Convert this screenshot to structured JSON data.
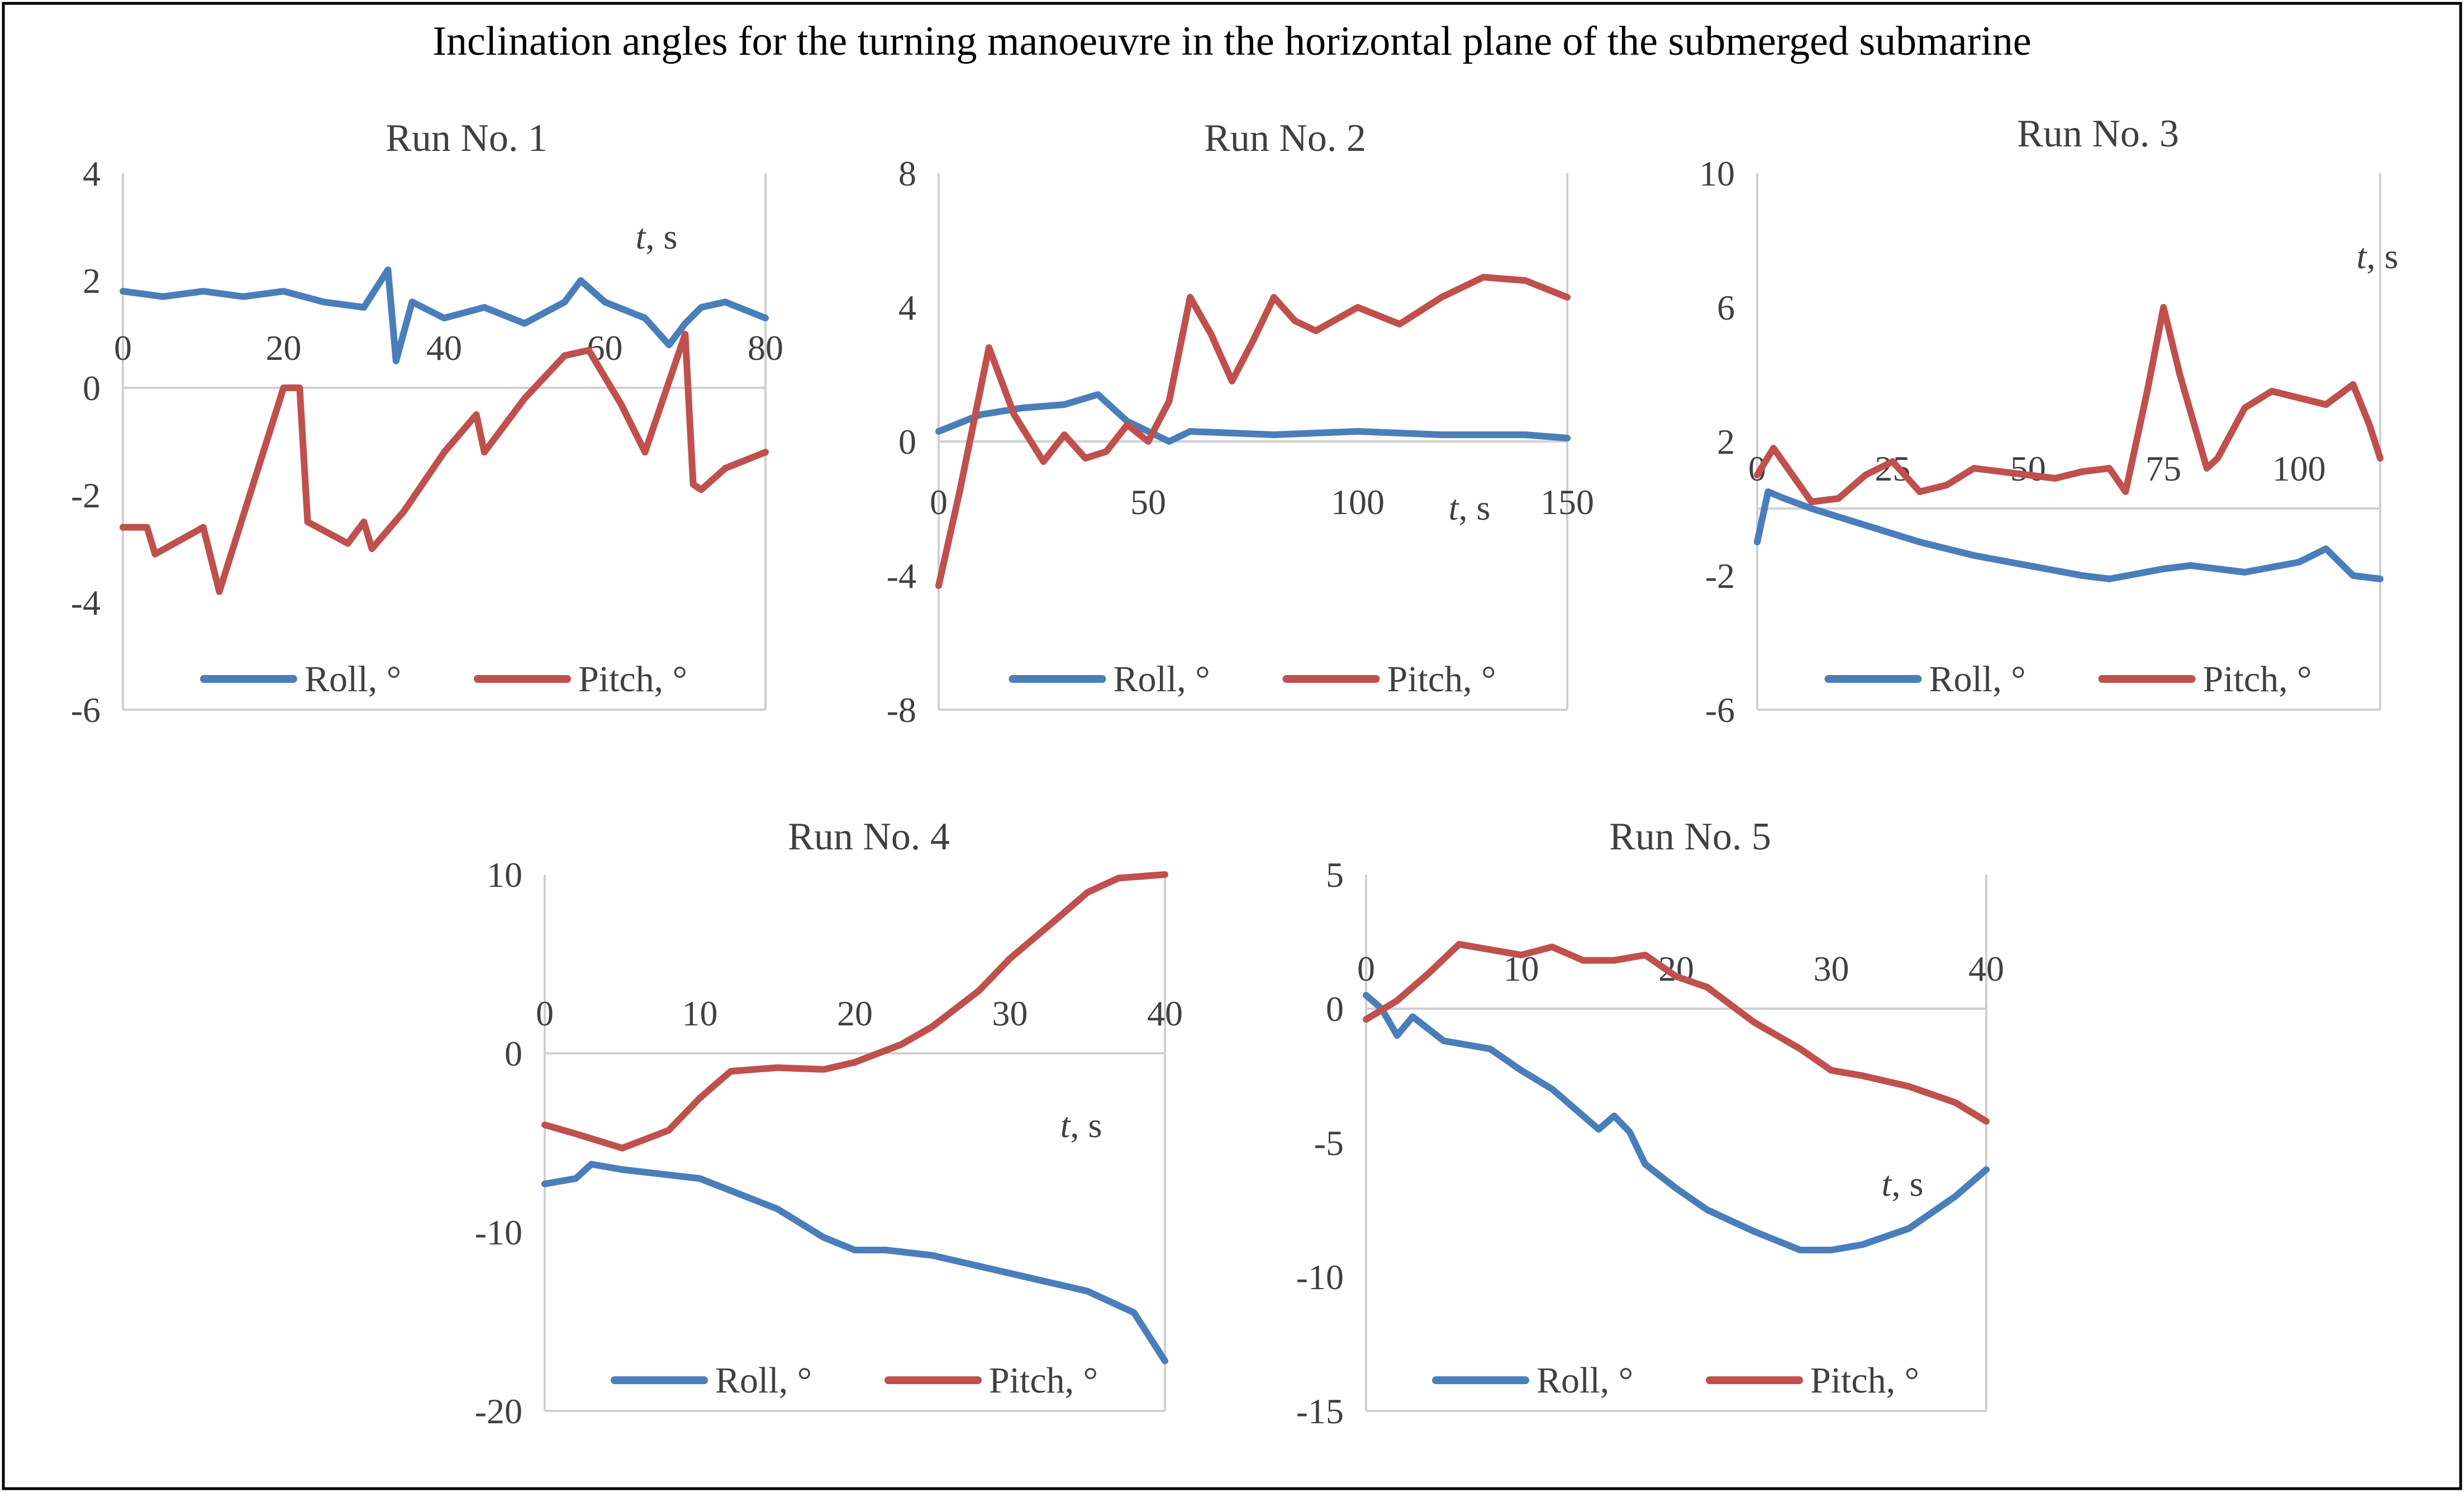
{
  "figure_title": "Inclination angles for the turning manoeuvre in the horizontal plane of the submerged submarine",
  "chart_data": [
    {
      "type": "line",
      "title": "Run No. 1",
      "xlabel": "t, s",
      "ylabel": "",
      "xlim": [
        0,
        80
      ],
      "ylim": [
        -6,
        4
      ],
      "xticks": [
        "0",
        "20",
        "40",
        "60",
        "80"
      ],
      "yticks": [
        "4",
        "2",
        "0",
        "-2",
        "-4",
        "-6"
      ],
      "legend": [
        "Roll, °",
        "Pitch, °"
      ],
      "series": [
        {
          "name": "Roll, °",
          "color": "#4a7ebb",
          "x": [
            0,
            5,
            10,
            15,
            20,
            25,
            30,
            33,
            34,
            36,
            40,
            45,
            50,
            55,
            57,
            60,
            65,
            68,
            70,
            72,
            75,
            80
          ],
          "y": [
            1.8,
            1.7,
            1.8,
            1.7,
            1.8,
            1.6,
            1.5,
            2.2,
            0.5,
            1.6,
            1.3,
            1.5,
            1.2,
            1.6,
            2.0,
            1.6,
            1.3,
            0.8,
            1.2,
            1.5,
            1.6,
            1.3
          ]
        },
        {
          "name": "Pitch, °",
          "color": "#c0504d",
          "x": [
            0,
            3,
            4,
            10,
            12,
            20,
            22,
            23,
            28,
            30,
            31,
            35,
            40,
            44,
            45,
            50,
            55,
            58,
            62,
            65,
            70,
            71,
            72,
            75,
            80
          ],
          "y": [
            -2.6,
            -2.6,
            -3.1,
            -2.6,
            -3.8,
            0.0,
            0.0,
            -2.5,
            -2.9,
            -2.5,
            -3.0,
            -2.3,
            -1.2,
            -0.5,
            -1.2,
            -0.2,
            0.6,
            0.7,
            -0.3,
            -1.2,
            1.0,
            -1.8,
            -1.9,
            -1.5,
            -1.2
          ]
        }
      ]
    },
    {
      "type": "line",
      "title": "Run No. 2",
      "xlabel": "t, s",
      "ylabel": "",
      "xlim": [
        0,
        150
      ],
      "ylim": [
        -8,
        8
      ],
      "xticks": [
        "0",
        "50",
        "100",
        "150"
      ],
      "yticks": [
        "8",
        "4",
        "0",
        "-4",
        "-8"
      ],
      "legend": [
        "Roll, °",
        "Pitch, °"
      ],
      "series": [
        {
          "name": "Roll, °",
          "color": "#4a7ebb",
          "x": [
            0,
            10,
            20,
            30,
            38,
            45,
            50,
            55,
            60,
            80,
            100,
            120,
            140,
            150
          ],
          "y": [
            0.3,
            0.8,
            1.0,
            1.1,
            1.4,
            0.6,
            0.3,
            0.0,
            0.3,
            0.2,
            0.3,
            0.2,
            0.2,
            0.1
          ]
        },
        {
          "name": "Pitch, °",
          "color": "#c0504d",
          "x": [
            0,
            5,
            12,
            18,
            25,
            30,
            35,
            40,
            45,
            50,
            55,
            60,
            65,
            70,
            75,
            80,
            85,
            90,
            100,
            110,
            120,
            130,
            140,
            150
          ],
          "y": [
            -4.3,
            -1.5,
            2.8,
            0.8,
            -0.6,
            0.2,
            -0.5,
            -0.3,
            0.5,
            0.0,
            1.2,
            4.3,
            3.2,
            1.8,
            3.0,
            4.3,
            3.6,
            3.3,
            4.0,
            3.5,
            4.3,
            4.9,
            4.8,
            4.3
          ]
        }
      ]
    },
    {
      "type": "line",
      "title": "Run No. 3",
      "xlabel": "t, s",
      "ylabel": "",
      "xlim": [
        0,
        115
      ],
      "ylim": [
        -6,
        10
      ],
      "xticks": [
        "0",
        "25",
        "50",
        "75",
        "100"
      ],
      "yticks": [
        "10",
        "6",
        "2",
        "-2",
        "-6"
      ],
      "legend": [
        "Roll, °",
        "Pitch, °"
      ],
      "series": [
        {
          "name": "Roll, °",
          "color": "#4a7ebb",
          "x": [
            0,
            2,
            5,
            10,
            20,
            30,
            40,
            50,
            60,
            65,
            75,
            80,
            90,
            100,
            105,
            110,
            115
          ],
          "y": [
            -1.0,
            0.5,
            0.3,
            0.0,
            -0.5,
            -1.0,
            -1.4,
            -1.7,
            -2.0,
            -2.1,
            -1.8,
            -1.7,
            -1.9,
            -1.6,
            -1.2,
            -2.0,
            -2.1
          ]
        },
        {
          "name": "Pitch, °",
          "color": "#c0504d",
          "x": [
            0,
            3,
            10,
            15,
            20,
            25,
            30,
            35,
            40,
            50,
            55,
            60,
            65,
            68,
            72,
            75,
            78,
            83,
            85,
            90,
            95,
            100,
            105,
            110,
            113,
            115
          ],
          "y": [
            1.0,
            1.8,
            0.2,
            0.3,
            1.0,
            1.4,
            0.5,
            0.7,
            1.2,
            1.0,
            0.9,
            1.1,
            1.2,
            0.5,
            3.5,
            6.0,
            4.0,
            1.2,
            1.5,
            3.0,
            3.5,
            3.3,
            3.1,
            3.7,
            2.5,
            1.5
          ]
        }
      ]
    },
    {
      "type": "line",
      "title": "Run No. 4",
      "xlabel": "t, s",
      "ylabel": "",
      "xlim": [
        0,
        40
      ],
      "ylim": [
        -20,
        10
      ],
      "xticks": [
        "0",
        "10",
        "20",
        "30",
        "40"
      ],
      "yticks": [
        "10",
        "0",
        "-10",
        "-20"
      ],
      "legend": [
        "Roll, °",
        "Pitch, °"
      ],
      "series": [
        {
          "name": "Roll, °",
          "color": "#4a7ebb",
          "x": [
            0,
            2,
            3,
            5,
            8,
            10,
            15,
            18,
            20,
            22,
            25,
            30,
            35,
            38,
            40
          ],
          "y": [
            -7.3,
            -7.0,
            -6.2,
            -6.5,
            -6.8,
            -7.0,
            -8.7,
            -10.3,
            -11.0,
            -11.0,
            -11.3,
            -12.3,
            -13.3,
            -14.5,
            -17.2
          ]
        },
        {
          "name": "Pitch, °",
          "color": "#c0504d",
          "x": [
            0,
            2,
            5,
            8,
            10,
            12,
            15,
            18,
            20,
            23,
            25,
            28,
            30,
            33,
            35,
            37,
            40
          ],
          "y": [
            -4.0,
            -4.5,
            -5.3,
            -4.3,
            -2.5,
            -1.0,
            -0.8,
            -0.9,
            -0.5,
            0.5,
            1.5,
            3.5,
            5.3,
            7.5,
            9.0,
            9.8,
            10.0
          ]
        }
      ]
    },
    {
      "type": "line",
      "title": "Run No. 5",
      "xlabel": "t, s",
      "ylabel": "",
      "xlim": [
        0,
        40
      ],
      "ylim": [
        -15,
        5
      ],
      "xticks": [
        "0",
        "10",
        "20",
        "30",
        "40"
      ],
      "yticks": [
        "5",
        "0",
        "-5",
        "-10",
        "-15"
      ],
      "legend": [
        "Roll, °",
        "Pitch, °"
      ],
      "series": [
        {
          "name": "Roll, °",
          "color": "#4a7ebb",
          "x": [
            0,
            1,
            2,
            3,
            5,
            8,
            10,
            12,
            15,
            16,
            17,
            18,
            20,
            22,
            25,
            28,
            30,
            32,
            35,
            38,
            40
          ],
          "y": [
            0.5,
            0.0,
            -1.0,
            -0.3,
            -1.2,
            -1.5,
            -2.3,
            -3.0,
            -4.5,
            -4.0,
            -4.6,
            -5.8,
            -6.7,
            -7.5,
            -8.3,
            -9.0,
            -9.0,
            -8.8,
            -8.2,
            -7.0,
            -6.0
          ]
        },
        {
          "name": "Pitch, °",
          "color": "#c0504d",
          "x": [
            0,
            2,
            4,
            6,
            8,
            10,
            12,
            14,
            16,
            18,
            20,
            22,
            25,
            28,
            30,
            32,
            35,
            38,
            40
          ],
          "y": [
            -0.4,
            0.3,
            1.3,
            2.4,
            2.2,
            2.0,
            2.3,
            1.8,
            1.8,
            2.0,
            1.2,
            0.8,
            -0.5,
            -1.5,
            -2.3,
            -2.5,
            -2.9,
            -3.5,
            -4.2
          ]
        }
      ]
    }
  ]
}
